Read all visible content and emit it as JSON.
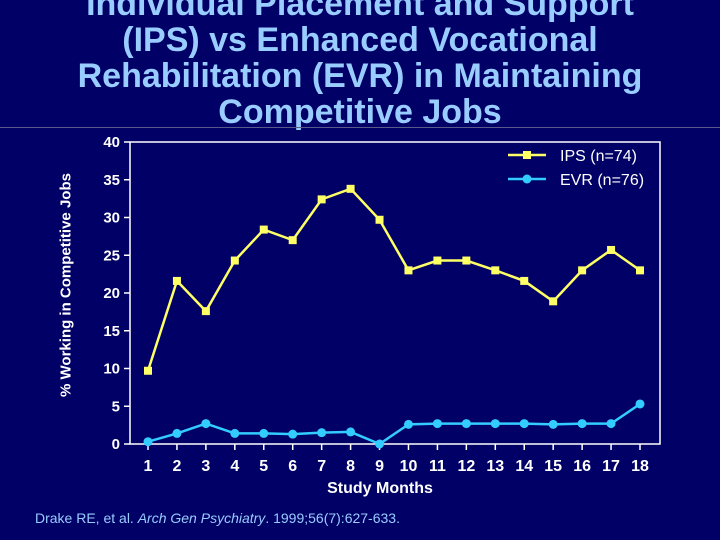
{
  "title_lines": [
    "Individual Placement and Support",
    "(IPS) vs Enhanced Vocational",
    "Rehabilitation (EVR) in Maintaining",
    "Competitive Jobs"
  ],
  "citation": {
    "authors": "Drake RE, et al. ",
    "journal": "Arch Gen Psychiatry",
    "details": ". 1999;56(7):627-633."
  },
  "colors": {
    "background": "#000066",
    "title": "#99ccff",
    "ips": "#ffff66",
    "evr": "#33ccff"
  },
  "chart_data": {
    "type": "line",
    "title": "Individual Placement and Support (IPS) vs Enhanced Vocational Rehabilitation (EVR) in Maintaining Competitive Jobs",
    "xlabel": "Study Months",
    "ylabel": "% Working in Competitive Jobs",
    "x": [
      1,
      2,
      3,
      4,
      5,
      6,
      7,
      8,
      9,
      10,
      11,
      12,
      13,
      14,
      15,
      16,
      17,
      18
    ],
    "ylim": [
      0,
      40
    ],
    "yticks": [
      0,
      5,
      10,
      15,
      20,
      25,
      30,
      35,
      40
    ],
    "grid": false,
    "legend_position": "top-right",
    "series": [
      {
        "name": "IPS (n=74)",
        "marker": "square",
        "color": "#ffff66",
        "values": [
          9.7,
          21.6,
          17.6,
          24.3,
          28.4,
          27.0,
          32.4,
          33.8,
          29.7,
          23.0,
          24.3,
          24.3,
          23.0,
          21.6,
          18.9,
          23.0,
          25.7,
          23.0
        ]
      },
      {
        "name": "EVR (n=76)",
        "marker": "circle",
        "color": "#33ccff",
        "values": [
          0.3,
          1.4,
          2.7,
          1.4,
          1.4,
          1.3,
          1.5,
          1.6,
          0.0,
          2.6,
          2.7,
          2.7,
          2.7,
          2.7,
          2.6,
          2.7,
          2.7,
          5.3
        ]
      }
    ]
  }
}
